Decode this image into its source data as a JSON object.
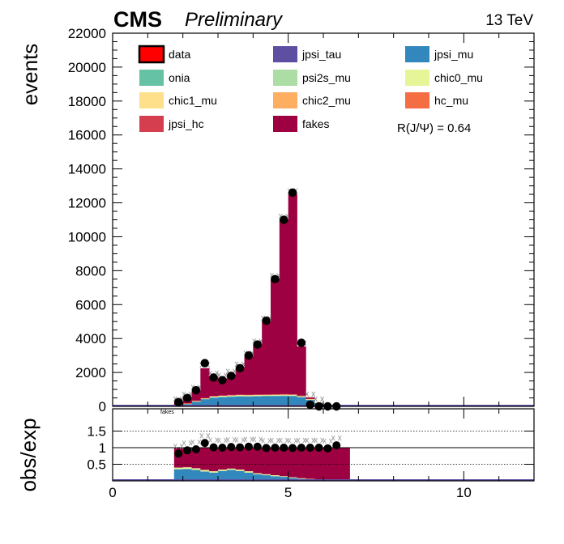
{
  "header": {
    "experiment": "CMS",
    "status": "Preliminary",
    "energy": "13 TeV"
  },
  "legend_annotation": "R(J/Ψ) = 0.64",
  "ratio_panel_annotation": "fakes",
  "chart_data": [
    {
      "type": "bar",
      "stacked": true,
      "ylabel": "events",
      "xlim": [
        0,
        12
      ],
      "ylim": [
        0,
        22000
      ],
      "yticks": [
        "0",
        "2000",
        "4000",
        "6000",
        "8000",
        "10000",
        "12000",
        "14000",
        "16000",
        "18000",
        "20000",
        "22000"
      ],
      "bin_width": 0.25,
      "x_bin_low_edges": [
        1.75,
        2.0,
        2.25,
        2.5,
        2.75,
        3.0,
        3.25,
        3.5,
        3.75,
        4.0,
        4.25,
        4.5,
        4.75,
        5.0,
        5.25,
        5.5,
        5.75,
        6.0,
        6.25
      ],
      "legend": [
        {
          "name": "data",
          "color": "#ff0000",
          "style": "marker"
        },
        {
          "name": "jpsi_tau",
          "color": "#5e4fa2"
        },
        {
          "name": "jpsi_mu",
          "color": "#3288bd"
        },
        {
          "name": "onia",
          "color": "#66c2a5"
        },
        {
          "name": "psi2s_mu",
          "color": "#abdda4"
        },
        {
          "name": "chic0_mu",
          "color": "#e6f598"
        },
        {
          "name": "chic1_mu",
          "color": "#fee08b"
        },
        {
          "name": "chic2_mu",
          "color": "#fdae61"
        },
        {
          "name": "hc_mu",
          "color": "#f46d43"
        },
        {
          "name": "jpsi_hc",
          "color": "#d53e4f"
        },
        {
          "name": "fakes",
          "color": "#9e0142"
        }
      ],
      "series": [
        {
          "name": "jpsi_tau",
          "color": "#5e4fa2",
          "values": [
            10,
            15,
            20,
            30,
            50,
            60,
            65,
            65,
            60,
            60,
            55,
            55,
            50,
            45,
            40,
            30,
            20,
            10,
            0
          ]
        },
        {
          "name": "jpsi_mu",
          "color": "#3288bd",
          "values": [
            60,
            120,
            250,
            380,
            460,
            480,
            500,
            520,
            520,
            530,
            540,
            550,
            560,
            560,
            500,
            350,
            180,
            50,
            0
          ]
        },
        {
          "name": "onia",
          "color": "#66c2a5",
          "values": [
            5,
            10,
            15,
            20,
            25,
            25,
            25,
            25,
            25,
            25,
            25,
            25,
            25,
            25,
            20,
            15,
            10,
            5,
            0
          ]
        },
        {
          "name": "psi2s_mu",
          "color": "#abdda4",
          "values": [
            5,
            10,
            15,
            20,
            30,
            30,
            30,
            30,
            30,
            30,
            30,
            30,
            30,
            30,
            25,
            20,
            10,
            5,
            0
          ]
        },
        {
          "name": "chic0_mu",
          "color": "#e6f598",
          "values": [
            0,
            5,
            5,
            10,
            10,
            10,
            10,
            10,
            10,
            10,
            10,
            10,
            10,
            10,
            10,
            5,
            5,
            0,
            0
          ]
        },
        {
          "name": "chic1_mu",
          "color": "#fee08b",
          "values": [
            5,
            10,
            15,
            20,
            20,
            20,
            20,
            20,
            20,
            20,
            20,
            20,
            20,
            20,
            20,
            15,
            10,
            5,
            0
          ]
        },
        {
          "name": "chic2_mu",
          "color": "#fdae61",
          "values": [
            5,
            5,
            10,
            10,
            15,
            15,
            15,
            15,
            15,
            15,
            15,
            15,
            15,
            15,
            10,
            10,
            5,
            0,
            0
          ]
        },
        {
          "name": "hc_mu",
          "color": "#f46d43",
          "values": [
            0,
            5,
            5,
            5,
            5,
            5,
            5,
            5,
            5,
            5,
            5,
            5,
            5,
            5,
            5,
            5,
            0,
            0,
            0
          ]
        },
        {
          "name": "jpsi_hc",
          "color": "#d53e4f",
          "values": [
            0,
            5,
            5,
            5,
            5,
            5,
            5,
            5,
            5,
            5,
            5,
            5,
            5,
            5,
            5,
            5,
            0,
            0,
            0
          ]
        },
        {
          "name": "fakes",
          "color": "#9e0142",
          "values": [
            160,
            350,
            600,
            1750,
            1150,
            1000,
            1200,
            1600,
            2250,
            2950,
            4300,
            6800,
            10300,
            11800,
            2900,
            80,
            0,
            0,
            0
          ]
        }
      ],
      "data_points": {
        "name": "data",
        "x": [
          1.875,
          2.125,
          2.375,
          2.625,
          2.875,
          3.125,
          3.375,
          3.625,
          3.875,
          4.125,
          4.375,
          4.625,
          4.875,
          5.125,
          5.375,
          5.625,
          5.875,
          6.125,
          6.375
        ],
        "y": [
          250,
          500,
          950,
          2550,
          1700,
          1550,
          1800,
          2250,
          3000,
          3650,
          5050,
          7500,
          11000,
          12600,
          3750,
          100,
          0,
          0,
          0
        ]
      }
    },
    {
      "type": "bar",
      "stacked": true,
      "ylabel": "obs/exp",
      "xlim": [
        0,
        12
      ],
      "ylim": [
        0,
        2
      ],
      "yticks": [
        "0.5",
        "1",
        "1.5"
      ],
      "xticks": [
        "0",
        "5",
        "10"
      ],
      "reference_lines": [
        0.5,
        1,
        1.5
      ],
      "bin_low_edges": [
        1.75,
        2.0,
        2.25,
        2.5,
        2.75,
        3.0,
        3.25,
        3.5,
        3.75,
        4.0,
        4.25,
        4.5,
        4.75,
        5.0,
        5.25,
        5.5,
        5.75,
        6.0,
        6.25,
        6.5
      ],
      "fraction_jpsi_mu": [
        0.35,
        0.36,
        0.33,
        0.28,
        0.25,
        0.3,
        0.33,
        0.3,
        0.25,
        0.2,
        0.17,
        0.14,
        0.12,
        0.09,
        0.06,
        0.04,
        0.03,
        0.02,
        0.02,
        0.01
      ],
      "fraction_light": [
        0.05,
        0.05,
        0.05,
        0.05,
        0.04,
        0.04,
        0.04,
        0.04,
        0.04,
        0.03,
        0.03,
        0.03,
        0.02,
        0.02,
        0.02,
        0.02,
        0.01,
        0.01,
        0.01,
        0.01
      ],
      "ratio_points": {
        "x": [
          1.875,
          2.125,
          2.375,
          2.625,
          2.875,
          3.125,
          3.375,
          3.625,
          3.875,
          4.125,
          4.375,
          4.625,
          4.875,
          5.125,
          5.375,
          5.625,
          5.875,
          6.125,
          6.375
        ],
        "y": [
          0.82,
          0.92,
          0.95,
          1.14,
          1.01,
          1.0,
          1.02,
          1.01,
          1.03,
          1.03,
          0.99,
          1.0,
          1.0,
          0.99,
          1.0,
          1.0,
          1.0,
          0.98,
          1.07
        ]
      }
    }
  ]
}
